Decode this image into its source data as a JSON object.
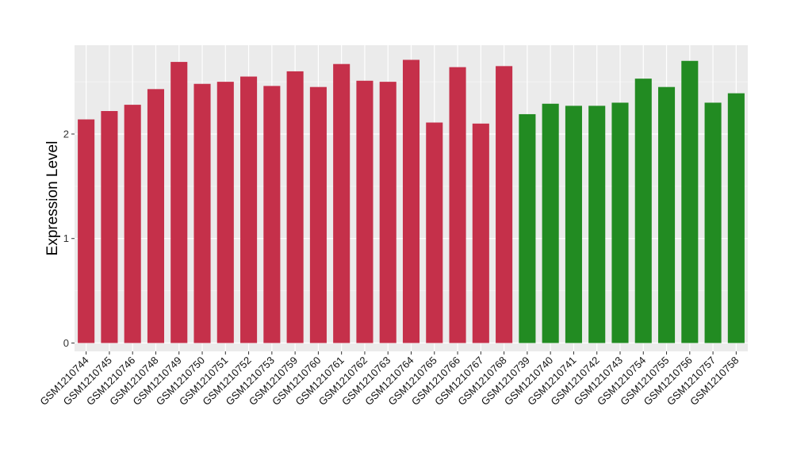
{
  "chart_data": {
    "type": "bar",
    "ylabel": "Expression Level",
    "xlabel": "",
    "ylim": [
      -0.08,
      2.85
    ],
    "yticks": [
      0,
      1,
      2
    ],
    "grid": true,
    "categories": [
      "GSM1210744",
      "GSM1210745",
      "GSM1210746",
      "GSM1210748",
      "GSM1210749",
      "GSM1210750",
      "GSM1210751",
      "GSM1210752",
      "GSM1210753",
      "GSM1210759",
      "GSM1210760",
      "GSM1210761",
      "GSM1210762",
      "GSM1210763",
      "GSM1210764",
      "GSM1210765",
      "GSM1210766",
      "GSM1210767",
      "GSM1210768",
      "GSM1210739",
      "GSM1210740",
      "GSM1210741",
      "GSM1210742",
      "GSM1210743",
      "GSM1210754",
      "GSM1210755",
      "GSM1210756",
      "GSM1210757",
      "GSM1210758"
    ],
    "values": [
      2.14,
      2.22,
      2.28,
      2.43,
      2.69,
      2.48,
      2.5,
      2.55,
      2.46,
      2.6,
      2.45,
      2.67,
      2.51,
      2.5,
      2.71,
      2.11,
      2.64,
      2.1,
      2.65,
      2.19,
      2.29,
      2.27,
      2.27,
      2.3,
      2.53,
      2.45,
      2.7,
      2.3,
      2.39
    ],
    "bar_colors": [
      "#c5304a",
      "#c5304a",
      "#c5304a",
      "#c5304a",
      "#c5304a",
      "#c5304a",
      "#c5304a",
      "#c5304a",
      "#c5304a",
      "#c5304a",
      "#c5304a",
      "#c5304a",
      "#c5304a",
      "#c5304a",
      "#c5304a",
      "#c5304a",
      "#c5304a",
      "#c5304a",
      "#c5304a",
      "#228b22",
      "#228b22",
      "#228b22",
      "#228b22",
      "#228b22",
      "#228b22",
      "#228b22",
      "#228b22",
      "#228b22",
      "#228b22"
    ]
  },
  "colors": {
    "panel_background": "#ebebeb",
    "grid_major": "#ffffff",
    "axis_text": "#000000"
  }
}
